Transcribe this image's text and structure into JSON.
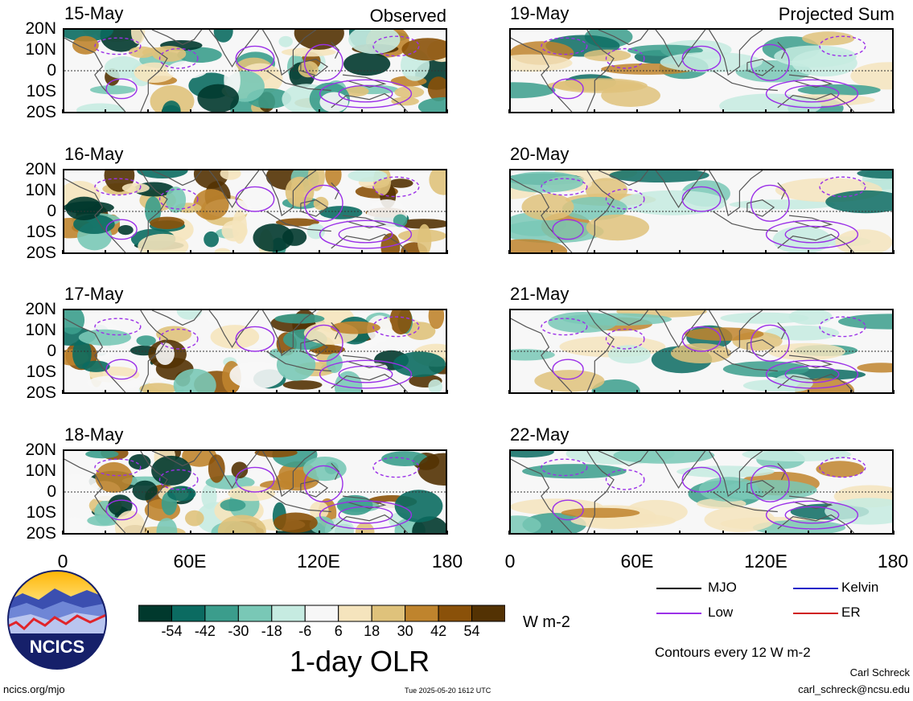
{
  "observed_label": "Observed",
  "projected_label": "Projected Sum",
  "observed_dates": [
    "15-May",
    "16-May",
    "17-May",
    "18-May"
  ],
  "projected_dates": [
    "19-May",
    "20-May",
    "21-May",
    "22-May"
  ],
  "lat_labels": [
    "20N",
    "10N",
    "0",
    "10S",
    "20S"
  ],
  "lon_labels": [
    "0",
    "60E",
    "120E",
    "180"
  ],
  "colorbar": {
    "ticks": [
      "-54",
      "-42",
      "-30",
      "-18",
      "-6",
      "6",
      "18",
      "30",
      "42",
      "54"
    ],
    "colors": [
      "#01392d",
      "#0b6b61",
      "#3b9d8c",
      "#79c8b6",
      "#c6ebe1",
      "#f7f7f7",
      "#f5e4bd",
      "#dfc27b",
      "#bf842d",
      "#8a5109",
      "#533203"
    ],
    "units": "W m-2",
    "title": "1-day OLR"
  },
  "legend": {
    "items": [
      {
        "label": "MJO",
        "color": "#000000"
      },
      {
        "label": "Kelvin",
        "color": "#2020c8"
      },
      {
        "label": "Low",
        "color": "#9b30e8"
      },
      {
        "label": "ER",
        "color": "#d01818"
      }
    ],
    "contours_note": "Contours every 12 W m-2"
  },
  "logo_text": "NCICS",
  "footer": {
    "site": "ncics.org/mjo",
    "timestamp": "Tue 2025-05-20 1612 UTC",
    "author": "Carl Schreck",
    "email": "carl_schreck@ncsu.edu"
  }
}
